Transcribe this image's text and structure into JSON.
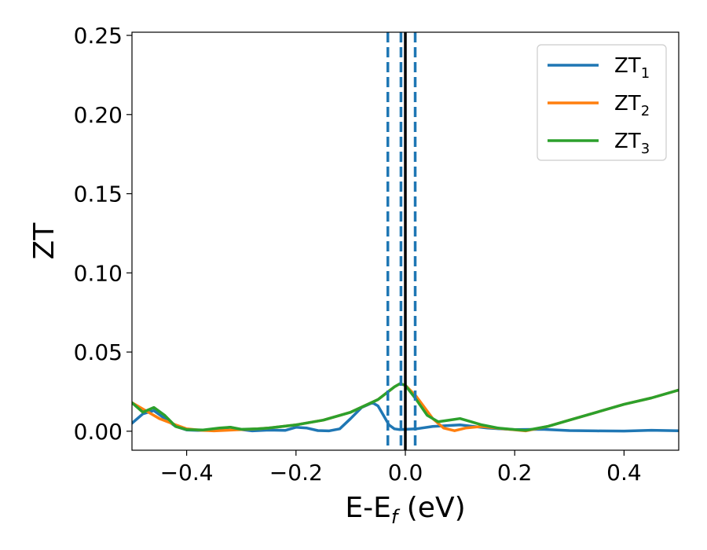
{
  "chart_data": {
    "type": "line",
    "xlabel": {
      "base": "E-E",
      "sub": "f",
      "suffix": " (eV)"
    },
    "ylabel": "ZT",
    "xlim": [
      -0.5,
      0.5
    ],
    "ylim": [
      -0.012,
      0.252
    ],
    "xticks": [
      -0.4,
      -0.2,
      0.0,
      0.2,
      0.4
    ],
    "xtick_labels": [
      "−0.4",
      "−0.2",
      "0.0",
      "0.2",
      "0.4"
    ],
    "yticks": [
      0.0,
      0.05,
      0.1,
      0.15,
      0.2,
      0.25
    ],
    "ytick_labels": [
      "0.00",
      "0.05",
      "0.10",
      "0.15",
      "0.20",
      "0.25"
    ],
    "grid": false,
    "legend_position": "top-right",
    "vlines": [
      {
        "x": 0.0,
        "style": "solid",
        "color": "#000000"
      },
      {
        "x": -0.032,
        "style": "dashed",
        "color": "#1f77b4"
      },
      {
        "x": -0.008,
        "style": "dashed",
        "color": "#1f77b4"
      },
      {
        "x": 0.018,
        "style": "dashed",
        "color": "#1f77b4"
      }
    ],
    "series": [
      {
        "name": {
          "base": "ZT",
          "sub": "1"
        },
        "color": "#1f77b4",
        "x": [
          -0.5,
          -0.48,
          -0.46,
          -0.44,
          -0.42,
          -0.4,
          -0.38,
          -0.35,
          -0.32,
          -0.3,
          -0.28,
          -0.25,
          -0.22,
          -0.2,
          -0.18,
          -0.16,
          -0.14,
          -0.12,
          -0.1,
          -0.08,
          -0.06,
          -0.05,
          -0.04,
          -0.03,
          -0.02,
          -0.01,
          0.0,
          0.02,
          0.05,
          0.1,
          0.15,
          0.2,
          0.25,
          0.3,
          0.35,
          0.4,
          0.45,
          0.5
        ],
        "y": [
          0.005,
          0.011,
          0.013,
          0.008,
          0.003,
          0.0008,
          0.0005,
          0.0008,
          0.0025,
          0.001,
          0.0002,
          0.0007,
          0.0005,
          0.0025,
          0.002,
          0.0004,
          0.0002,
          0.0015,
          0.008,
          0.015,
          0.018,
          0.016,
          0.01,
          0.004,
          0.0015,
          0.001,
          0.0012,
          0.0015,
          0.003,
          0.004,
          0.002,
          0.001,
          0.0012,
          0.0004,
          0.0002,
          0.0001,
          0.0006,
          0.0003
        ]
      },
      {
        "name": {
          "base": "ZT",
          "sub": "2"
        },
        "color": "#ff7f0e",
        "x": [
          -0.5,
          -0.47,
          -0.45,
          -0.42,
          -0.4,
          -0.37,
          -0.35,
          -0.33,
          -0.3,
          -0.27,
          -0.25,
          -0.2,
          -0.15,
          -0.1,
          -0.05,
          -0.02,
          -0.01,
          0.0,
          0.02,
          0.05,
          0.07,
          0.09,
          0.11,
          0.14,
          0.18,
          0.22,
          0.26,
          0.3,
          0.35,
          0.4,
          0.45,
          0.5
        ],
        "y": [
          0.018,
          0.012,
          0.008,
          0.004,
          0.0015,
          0.0005,
          0.0002,
          0.0005,
          0.001,
          0.0015,
          0.002,
          0.004,
          0.007,
          0.012,
          0.02,
          0.028,
          0.03,
          0.029,
          0.022,
          0.008,
          0.002,
          0.0003,
          0.002,
          0.003,
          0.0015,
          0.0002,
          0.003,
          0.007,
          0.012,
          0.017,
          0.021,
          0.026
        ]
      },
      {
        "name": {
          "base": "ZT",
          "sub": "3"
        },
        "color": "#2ca02c",
        "x": [
          -0.5,
          -0.48,
          -0.46,
          -0.44,
          -0.42,
          -0.4,
          -0.37,
          -0.34,
          -0.32,
          -0.3,
          -0.27,
          -0.25,
          -0.2,
          -0.15,
          -0.1,
          -0.05,
          -0.02,
          -0.01,
          0.0,
          0.02,
          0.04,
          0.06,
          0.08,
          0.1,
          0.12,
          0.14,
          0.17,
          0.2,
          0.22,
          0.26,
          0.3,
          0.35,
          0.4,
          0.45,
          0.5
        ],
        "y": [
          0.018,
          0.012,
          0.015,
          0.01,
          0.003,
          0.001,
          0.0008,
          0.002,
          0.0025,
          0.0012,
          0.0015,
          0.002,
          0.004,
          0.007,
          0.012,
          0.02,
          0.028,
          0.03,
          0.029,
          0.02,
          0.01,
          0.006,
          0.007,
          0.008,
          0.006,
          0.004,
          0.002,
          0.001,
          0.0005,
          0.003,
          0.007,
          0.012,
          0.017,
          0.021,
          0.026
        ]
      }
    ]
  }
}
